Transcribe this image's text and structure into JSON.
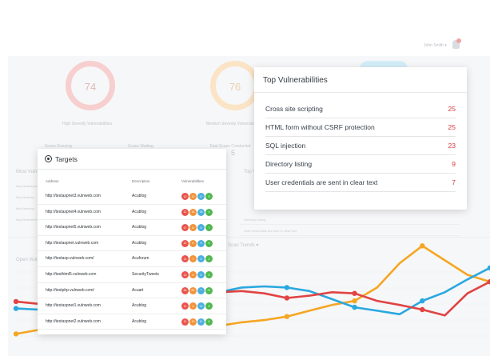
{
  "background": {
    "user_menu": "John Smith ▾",
    "rings": [
      {
        "value": "74",
        "caption": "High Severity Vulnerabilities",
        "color": "#f7c9c9"
      },
      {
        "value": "76",
        "caption": "Medium Severity Vulnerabilities",
        "color": "#fbe2c2"
      }
    ],
    "stats": [
      "Scans Running",
      "Scans Waiting",
      "Total Scans Conducted"
    ],
    "stat_value": "5",
    "section_titles": [
      "Most Vulnerable Targets",
      "Top Vulnerabilities",
      "Open Vulnerabilities",
      "Scan Trends ▾"
    ],
    "left_labels": [
      "http://testaspnet",
      "http://testasp",
      "http://testphp",
      "http://testhtml5"
    ],
    "right_rows": [
      "Directory listing",
      "User credentials are sent in clear text"
    ]
  },
  "top_vulnerabilities": {
    "title": "Top Vulnerabilities",
    "items": [
      {
        "name": "Cross site scripting",
        "count": "25"
      },
      {
        "name": "HTML form without CSRF protection",
        "count": "25"
      },
      {
        "name": "SQL injection",
        "count": "23"
      },
      {
        "name": "Directory listing",
        "count": "9"
      },
      {
        "name": "User credentials are sent in clear text",
        "count": "7"
      }
    ]
  },
  "targets": {
    "title": "Targets",
    "columns": {
      "address": "Address",
      "description": "Description",
      "vulnerabilities": "Vulnerabilities"
    },
    "rows": [
      {
        "address": "http://testaspnet3.vulnweb.com",
        "description": "Acublog",
        "badges": [
          "12",
          "12",
          "17",
          "5"
        ]
      },
      {
        "address": "http://testaspnet4.vulnweb.com",
        "description": "Acublog",
        "badges": [
          "11",
          "16",
          "18",
          "4"
        ]
      },
      {
        "address": "http://testaspnet5.vulnweb.com",
        "description": "Acublog",
        "badges": [
          "17",
          "8",
          "9",
          "7"
        ]
      },
      {
        "address": "http://testaspnet.vulnweb.com",
        "description": "Acublog",
        "badges": [
          "12",
          "6",
          "9",
          "6"
        ]
      },
      {
        "address": "http://testasp.vulnweb.com/",
        "description": "Acuforum",
        "badges": [
          "11",
          "7",
          "9",
          "4"
        ]
      },
      {
        "address": "http://testhtml5.vulnweb.com",
        "description": "SecurityTweets",
        "badges": [
          "12",
          "6",
          "5",
          "5"
        ]
      },
      {
        "address": "http://testphp.vulnweb.com/",
        "description": "Acuart",
        "badges": [
          "36",
          "51",
          "7",
          "21"
        ]
      },
      {
        "address": "http://testaspnet1.vulnweb.com",
        "description": "Acublog",
        "badges": [
          "11",
          "4",
          "12",
          "5"
        ]
      },
      {
        "address": "http://testaspnet2.vulnweb.com",
        "description": "Acublog",
        "badges": [
          "11",
          "10",
          "11",
          "6"
        ]
      }
    ]
  },
  "colors": {
    "red": "#e8554e",
    "orange": "#f0943a",
    "blue": "#4baee0",
    "green": "#4fb84f"
  },
  "chart_data": {
    "type": "line",
    "series": [
      {
        "color": "#f5a623",
        "values": [
          38,
          45,
          70,
          72,
          74,
          65,
          62,
          60,
          56,
          52,
          58,
          62,
          68,
          78,
          88,
          95,
          118,
          160,
          190,
          165,
          140,
          128
        ]
      },
      {
        "color": "#29a8e0",
        "values": [
          82,
          80,
          72,
          70,
          72,
          78,
          80,
          92,
          100,
          110,
          118,
          120,
          118,
          112,
          98,
          84,
          78,
          72,
          95,
          110,
          132,
          152
        ]
      },
      {
        "color": "#e04444",
        "values": [
          94,
          90,
          88,
          84,
          80,
          86,
          96,
          100,
          104,
          110,
          112,
          108,
          100,
          104,
          110,
          108,
          95,
          88,
          80,
          70,
          108,
          128
        ]
      }
    ]
  }
}
